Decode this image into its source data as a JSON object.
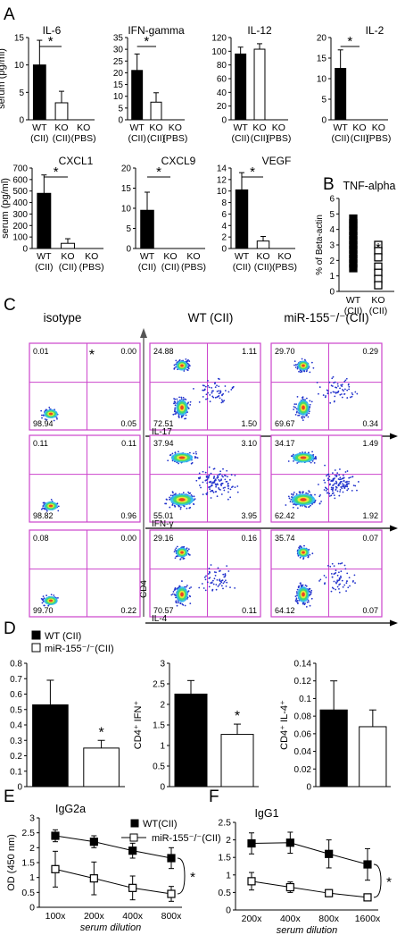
{
  "panel_letters": [
    "A",
    "B",
    "C",
    "D",
    "E",
    "F"
  ],
  "serum_ylabel": "serum (pg/ml)",
  "star": "*",
  "flow": {
    "col_titles": [
      "isotype",
      "WT (CII)",
      "miR-155⁻/⁻(CII)"
    ],
    "axis_cd4": "CD4",
    "axis_labels": [
      "IL-17",
      "IFN-γ",
      "IL-4"
    ],
    "colors": {
      "gate": "#cc44cc",
      "dots": "#2233cc"
    }
  },
  "chart_data": [
    {
      "id": "A1",
      "type": "bar",
      "title": "IL-6",
      "categories": [
        "WT\n(CII)",
        "KO\n(CII)",
        "KO\n(PBS)"
      ],
      "values": [
        10,
        3.1,
        0
      ],
      "errors": [
        4.5,
        2.1,
        0
      ],
      "ylim": [
        0,
        15
      ],
      "yticks": [
        0,
        5,
        10,
        15
      ],
      "ylabel": "serum (pg/ml)",
      "sig": "*"
    },
    {
      "id": "A2",
      "type": "bar",
      "title": "IFN-gamma",
      "categories": [
        "WT\n(CII)",
        "KO\n(CII)",
        "KO\n(PBS)"
      ],
      "values": [
        21,
        7.5,
        0
      ],
      "errors": [
        7,
        4,
        0
      ],
      "ylim": [
        0,
        35
      ],
      "yticks": [
        0,
        5,
        10,
        15,
        20,
        25,
        30,
        35
      ],
      "sig": "*"
    },
    {
      "id": "A3",
      "type": "bar",
      "title": "IL-12",
      "categories": [
        "WT\n(CII)",
        "KO\n(CII)",
        "KO\n(PBS)"
      ],
      "values": [
        96,
        103,
        0
      ],
      "errors": [
        10,
        8,
        0
      ],
      "ylim": [
        0,
        120
      ],
      "yticks": [
        0,
        20,
        40,
        60,
        80,
        100,
        120
      ]
    },
    {
      "id": "A4",
      "type": "bar",
      "title": "IL-2",
      "categories": [
        "WT\n(CII)",
        "KO\n(CII)",
        "KO\n(PBS)"
      ],
      "values": [
        12.5,
        0,
        0
      ],
      "errors": [
        4.5,
        0,
        0
      ],
      "ylim": [
        0,
        20
      ],
      "yticks": [
        0,
        5,
        10,
        15,
        20
      ],
      "sig": "*"
    },
    {
      "id": "A5",
      "type": "bar",
      "title": "CXCL1",
      "categories": [
        "WT\n(CII)",
        "KO\n(CII)",
        "KO\n(PBS)"
      ],
      "values": [
        480,
        45,
        0
      ],
      "errors": [
        160,
        40,
        0
      ],
      "ylim": [
        0,
        700
      ],
      "yticks": [
        0,
        100,
        200,
        300,
        400,
        500,
        600,
        700
      ],
      "ylabel": "serum (pg/ml)",
      "sig": "*"
    },
    {
      "id": "A6",
      "type": "bar",
      "title": "CXCL9",
      "categories": [
        "WT\n(CII)",
        "KO\n(CII)",
        "KO\n(PBS)"
      ],
      "values": [
        9.5,
        0,
        0
      ],
      "errors": [
        4.5,
        0,
        0
      ],
      "ylim": [
        0,
        20
      ],
      "yticks": [
        0,
        5,
        10,
        15,
        20
      ],
      "sig": "*"
    },
    {
      "id": "A7",
      "type": "bar",
      "title": "VEGF",
      "categories": [
        "WT\n(CII)",
        "KO\n(CII)",
        "KO\n(PBS)"
      ],
      "values": [
        10.2,
        1.3,
        0
      ],
      "errors": [
        3,
        0.8,
        0
      ],
      "ylim": [
        0,
        14
      ],
      "yticks": [
        0,
        2,
        4,
        6,
        8,
        10,
        12,
        14
      ],
      "sig": "*"
    },
    {
      "id": "B",
      "type": "scatter",
      "title": "TNF-alpha",
      "ylabel": "% of Beta-actin",
      "categories": [
        "WT\n(CII)",
        "KO\n(CII)"
      ],
      "groups": [
        [
          4.7,
          4.4,
          4.2,
          3.9,
          3.6,
          3.3,
          3.0,
          2.7,
          2.4,
          2.1,
          1.8,
          1.5
        ],
        [
          3.0,
          2.6,
          2.2,
          1.6,
          1.2,
          0.8,
          0.4
        ]
      ],
      "ylim": [
        0,
        6
      ],
      "yticks": [
        0,
        1,
        2,
        3,
        4,
        5,
        6
      ],
      "sig": "*"
    },
    {
      "id": "C",
      "type": "scatter",
      "title": "flow quadrant percentages",
      "rows": [
        {
          "axis": "IL-17",
          "isotype": [
            "0.01",
            "0.00",
            "98.94",
            "0.05"
          ],
          "wt": [
            "24.88",
            "1.11",
            "72.51",
            "1.50"
          ],
          "ko": [
            "29.70",
            "0.29",
            "69.67",
            "0.34"
          ]
        },
        {
          "axis": "IFN-γ",
          "isotype": [
            "0.11",
            "0.11",
            "98.82",
            "0.96"
          ],
          "wt": [
            "37.94",
            "3.10",
            "55.01",
            "3.95"
          ],
          "ko": [
            "34.17",
            "1.49",
            "62.42",
            "1.92"
          ]
        },
        {
          "axis": "IL-4",
          "isotype": [
            "0.08",
            "0.00",
            "99.70",
            "0.22"
          ],
          "wt": [
            "29.16",
            "0.16",
            "70.57",
            "0.11"
          ],
          "ko": [
            "35.74",
            "0.07",
            "64.12",
            "0.07"
          ]
        }
      ]
    },
    {
      "id": "D1",
      "type": "bar",
      "ylabel": "CD4⁺ IL-17⁺",
      "series": [
        {
          "name": "WT (CII)",
          "value": 0.53,
          "error": 0.16
        },
        {
          "name": "miR-155⁻/⁻(CII)",
          "value": 0.25,
          "error": 0.05
        }
      ],
      "ylim": [
        0,
        0.8
      ],
      "yticks": [
        0,
        0.1,
        0.2,
        0.3,
        0.4,
        0.5,
        0.6,
        0.7,
        0.8
      ],
      "sig": "*"
    },
    {
      "id": "D2",
      "type": "bar",
      "ylabel": "CD4⁺ IFN⁺",
      "series": [
        {
          "name": "WT (CII)",
          "value": 2.25,
          "error": 0.33
        },
        {
          "name": "miR-155⁻/⁻(CII)",
          "value": 1.27,
          "error": 0.25
        }
      ],
      "ylim": [
        0,
        3
      ],
      "yticks": [
        0,
        0.5,
        1,
        1.5,
        2,
        2.5,
        3
      ],
      "sig": "*"
    },
    {
      "id": "D3",
      "type": "bar",
      "ylabel": "CD4⁺ IL-4⁺",
      "series": [
        {
          "name": "WT (CII)",
          "value": 0.087,
          "error": 0.033
        },
        {
          "name": "miR-155⁻/⁻(CII)",
          "value": 0.068,
          "error": 0.019
        }
      ],
      "ylim": [
        0,
        0.14
      ],
      "yticks": [
        0,
        0.02,
        0.04,
        0.06,
        0.08,
        0.1,
        0.12,
        0.14
      ]
    },
    {
      "id": "E",
      "type": "line",
      "title": "IgG2a",
      "ylabel": "OD (450 nm)",
      "xlabel": "serum dilution",
      "categories": [
        "100x",
        "200x",
        "400x",
        "800x"
      ],
      "series": [
        {
          "name": "WT(CII)",
          "values": [
            2.4,
            2.2,
            1.9,
            1.65
          ],
          "errors": [
            0.2,
            0.2,
            0.25,
            0.35
          ]
        },
        {
          "name": "miR-155⁻/⁻(CII)",
          "values": [
            1.28,
            0.97,
            0.65,
            0.45
          ],
          "errors": [
            0.6,
            0.55,
            0.4,
            0.25
          ]
        }
      ],
      "ylim": [
        0,
        3
      ],
      "yticks": [
        0,
        0.5,
        1,
        1.5,
        2,
        2.5,
        3
      ],
      "sig": "*"
    },
    {
      "id": "F",
      "type": "line",
      "title": "IgG1",
      "xlabel": "serum dilution",
      "categories": [
        "200x",
        "400x",
        "800x",
        "1600x"
      ],
      "series": [
        {
          "name": "WT(CII)",
          "values": [
            1.9,
            1.92,
            1.6,
            1.3
          ],
          "errors": [
            0.3,
            0.3,
            0.4,
            0.45
          ]
        },
        {
          "name": "miR-155⁻/⁻(CII)",
          "values": [
            0.82,
            0.65,
            0.48,
            0.36
          ],
          "errors": [
            0.25,
            0.15,
            0.1,
            0.08
          ]
        }
      ],
      "ylim": [
        0,
        2.5
      ],
      "yticks": [
        0,
        0.5,
        1,
        1.5,
        2,
        2.5
      ],
      "sig": "*"
    }
  ]
}
